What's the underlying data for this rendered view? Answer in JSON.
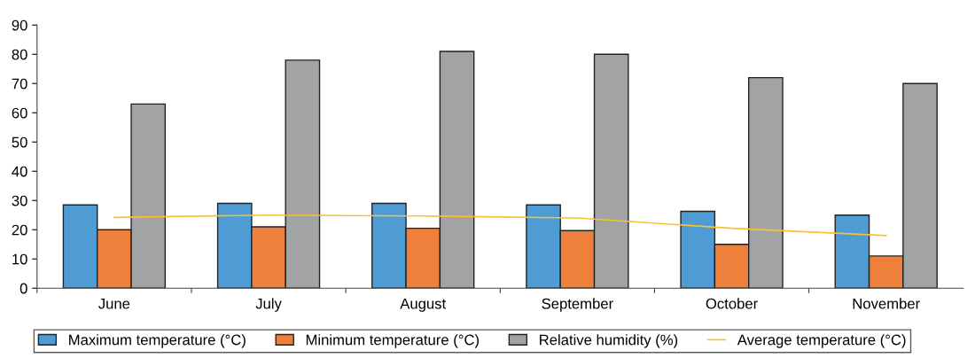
{
  "chart_data": {
    "type": "bar",
    "categories": [
      "June",
      "July",
      "August",
      "September",
      "October",
      "November"
    ],
    "series": [
      {
        "name": "Maximum temperature (°C)",
        "color": "#4f9bd4",
        "values": [
          28.5,
          29,
          29,
          28.5,
          26.3,
          25
        ]
      },
      {
        "name": "Minimum temperature (°C)",
        "color": "#ef803b",
        "values": [
          20,
          21,
          20.5,
          19.7,
          15,
          11
        ]
      },
      {
        "name": "Relative humidity (%)",
        "color": "#a2a3a5",
        "values": [
          63,
          78,
          81,
          80,
          72,
          70
        ]
      },
      {
        "name": "Average temperature (°C)",
        "color": "#f9c12e",
        "type": "line",
        "values": [
          24.2,
          25,
          24.7,
          24,
          20.5,
          18
        ]
      }
    ],
    "ylim": [
      0,
      90
    ],
    "yticks": [
      0,
      10,
      20,
      30,
      40,
      50,
      60,
      70,
      80,
      90
    ],
    "grid": false,
    "legend": "bottom",
    "marker": "none"
  }
}
